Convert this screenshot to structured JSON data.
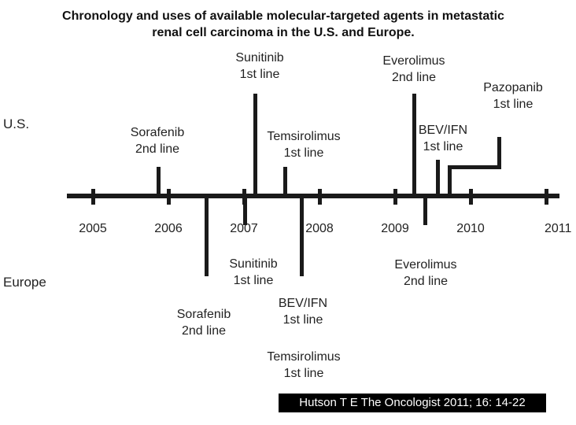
{
  "title": {
    "line1": "Chronology and uses of available molecular-targeted agents in metastatic",
    "line2": "renal cell carcinoma in the U.S. and Europe."
  },
  "regions": {
    "us": "U.S.",
    "europe": "Europe"
  },
  "years": [
    "2005",
    "2006",
    "2007",
    "2008",
    "2009",
    "2010",
    "2011"
  ],
  "us_events": [
    {
      "drug": "Sorafenib",
      "use": "2nd line"
    },
    {
      "drug": "Sunitinib",
      "use": "1st line"
    },
    {
      "drug": "Temsirolimus",
      "use": "1st line"
    },
    {
      "drug": "Everolimus",
      "use": "2nd line"
    },
    {
      "drug": "BEV/IFN",
      "use": "1st line"
    },
    {
      "drug": "Pazopanib",
      "use": "1st line"
    }
  ],
  "europe_events": [
    {
      "drug": "Sorafenib",
      "use": "2nd line"
    },
    {
      "drug": "Sunitinib",
      "use": "1st line"
    },
    {
      "drug": "BEV/IFN",
      "use": "1st line"
    },
    {
      "drug": "Temsirolimus",
      "use": "1st line"
    },
    {
      "drug": "Everolimus",
      "use": "2nd line"
    }
  ],
  "citation": "Hutson T E The Oncologist 2011; 16: 14-22"
}
